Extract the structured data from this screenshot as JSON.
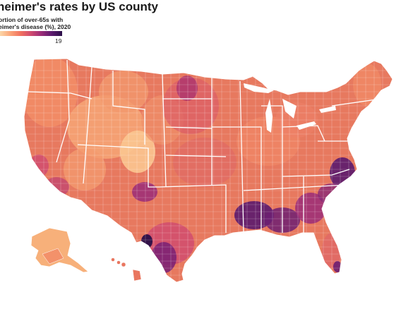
{
  "title": "heimer's rates by US county",
  "subtitle_lines": [
    "ortion of over-65s with",
    "eimer's disease (%), 2020"
  ],
  "legend": {
    "max_label": "19",
    "colors": [
      "#fcd7a8",
      "#fba579",
      "#f1715f",
      "#cf4a6f",
      "#9a2c78",
      "#5b1a6e",
      "#2b1048"
    ]
  },
  "map": {
    "type": "choropleth",
    "region": "United States (counties)",
    "base_color": "#e7795f",
    "border_color": "#ffffff"
  }
}
